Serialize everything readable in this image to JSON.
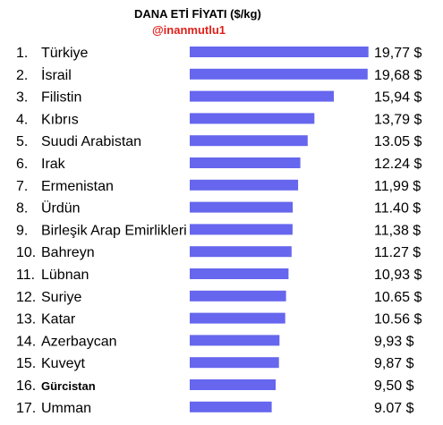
{
  "header": {
    "title": "DANA ETİ FİYATI ($/kg)",
    "subtitle": "@inanmutlu1"
  },
  "colors": {
    "bar": "#6666ee",
    "subtitle": "#e0201a"
  },
  "chart_data": {
    "type": "bar",
    "orientation": "horizontal",
    "title": "DANA ETİ FİYATI ($/kg)",
    "subtitle": "@inanmutlu1",
    "unit": "$/kg",
    "ranks": [
      "1.",
      "2.",
      "3.",
      "4.",
      "5.",
      "6.",
      "7.",
      "8.",
      "9.",
      "10.",
      "11.",
      "12.",
      "13.",
      "14.",
      "15.",
      "16.",
      "17."
    ],
    "categories": [
      "Türkiye",
      "İsrail",
      "Filistin",
      "Kıbrıs",
      "Suudi Arabistan",
      "Irak",
      "Ermenistan",
      "Ürdün",
      "Birleşik Arap Emirlikleri",
      "Bahreyn",
      "Lübnan",
      "Suriye",
      "Katar",
      "Azerbaycan",
      "Kuveyt",
      "Gürcistan",
      "Umman"
    ],
    "values": [
      19.77,
      19.68,
      15.94,
      13.79,
      13.05,
      12.24,
      11.99,
      11.4,
      11.38,
      11.27,
      10.93,
      10.65,
      10.56,
      9.93,
      9.87,
      9.5,
      9.07
    ],
    "value_labels": [
      "19,77 $",
      "19,68 $",
      "15,94 $",
      "13,79 $",
      "13.05 $",
      "12.24 $",
      "11,99 $",
      "11.40 $",
      "11,38 $",
      "11.27 $",
      "10,93 $",
      "10.65 $",
      "10.56 $",
      "9,93 $",
      "9,87 $",
      "9,50 $",
      "9.07 $"
    ],
    "bold_labels": [
      "Gürcistan"
    ],
    "grid": false,
    "legend": "none"
  }
}
